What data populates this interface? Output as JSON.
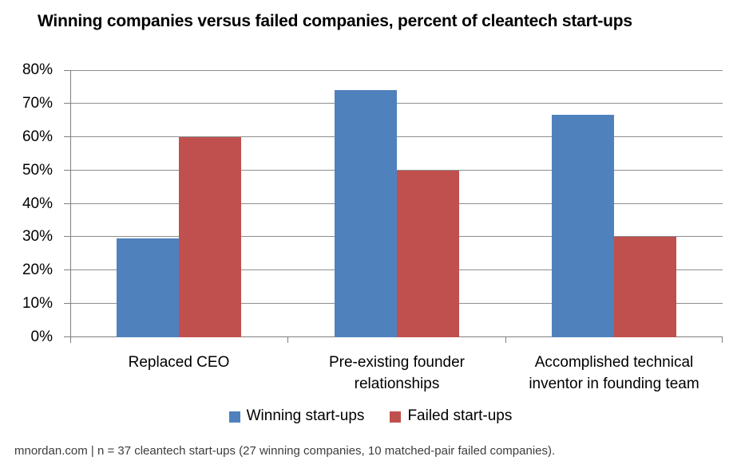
{
  "chart_data": {
    "type": "bar",
    "title": "Winning companies versus failed companies, percent of cleantech start-ups",
    "categories": [
      "Replaced CEO",
      "Pre-existing founder relationships",
      "Accomplished technical inventor in founding team"
    ],
    "series": [
      {
        "name": "Winning start-ups",
        "color": "#4F81BD",
        "values": [
          29.6,
          74.1,
          66.7
        ]
      },
      {
        "name": "Failed start-ups",
        "color": "#C0504D",
        "values": [
          60,
          50,
          30
        ]
      }
    ],
    "xlabel": "",
    "ylabel": "",
    "ylim": [
      0,
      80
    ],
    "y_ticks": [
      "0%",
      "10%",
      "20%",
      "30%",
      "40%",
      "50%",
      "60%",
      "70%",
      "80%"
    ],
    "grid": true,
    "legend_position": "bottom",
    "source_note": "mnordan.com | n = 37 cleantech start-ups (27 winning companies, 10 matched-pair failed companies)."
  }
}
